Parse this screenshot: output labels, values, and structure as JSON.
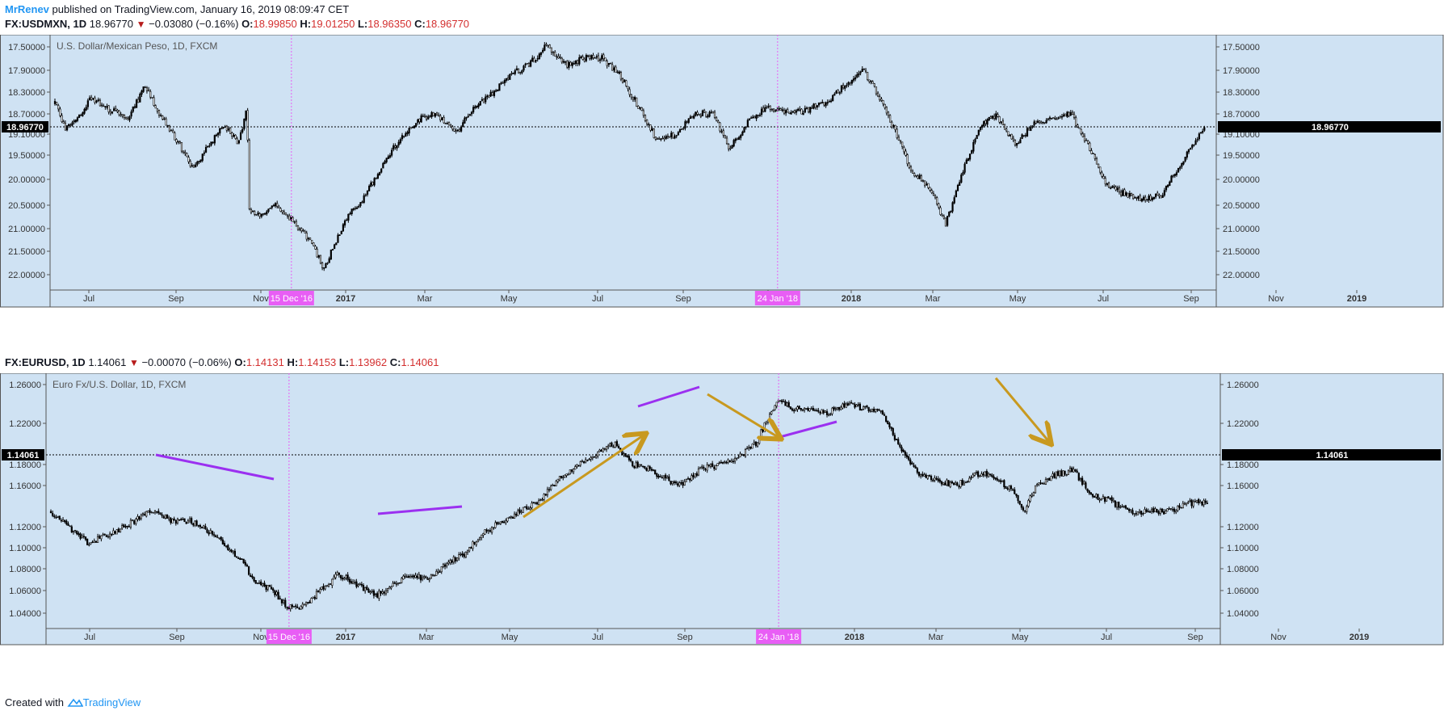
{
  "header": {
    "author": "MrRenev",
    "published_text": "published on TradingView.com, January 16, 2019 08:09:47 CET"
  },
  "ticker1": {
    "symbol": "FX:USDMXN, 1D",
    "last": "18.96770",
    "change": "−0.03080 (−0.16%)",
    "o_label": "O:",
    "o": "18.99850",
    "h_label": "H:",
    "h": "19.01250",
    "l_label": "L:",
    "l": "18.96350",
    "c_label": "C:",
    "c": "18.96770"
  },
  "ticker2": {
    "symbol": "FX:EURUSD, 1D",
    "last": "1.14061",
    "change": "−0.00070 (−0.06%)",
    "o_label": "O:",
    "o": "1.14131",
    "h_label": "H:",
    "h": "1.14153",
    "l_label": "L:",
    "l": "1.13962",
    "c_label": "C:",
    "c": "1.14061"
  },
  "footer": {
    "created_with": "Created with",
    "brand": "TradingView"
  },
  "colors": {
    "panel_bg": "#cfe2f3",
    "candles": "#000000",
    "marker": "#e85ef5",
    "trend_purple": "#9b30f0",
    "arrow_gold": "#c8991f",
    "price_label_bg": "#000000"
  },
  "chart_data": [
    {
      "type": "candlestick",
      "title": "U.S. Dollar/Mexican Peso, 1D, FXCM",
      "inverted_scale": true,
      "ylim": [
        17.35,
        22.3
      ],
      "x_ticks": [
        "Jul",
        "Sep",
        "Nov",
        "2017",
        "Mar",
        "May",
        "Jul",
        "Sep",
        "Nov",
        "2018",
        "Mar",
        "May",
        "Jul",
        "Sep",
        "Nov",
        "2019"
      ],
      "y_ticks": [
        "17.50000",
        "17.90000",
        "18.30000",
        "18.70000",
        "19.10000",
        "19.50000",
        "20.00000",
        "20.50000",
        "21.00000",
        "21.50000",
        "22.00000"
      ],
      "last_price": 18.9677,
      "last_price_label": "18.96770",
      "markers": [
        {
          "date": "2016-12-15",
          "label": "15 Dec '16"
        },
        {
          "date": "2018-01-24",
          "label": "24 Jan '18"
        }
      ],
      "x": [
        "2016-06-01",
        "2016-06-10",
        "2016-06-20",
        "2016-07-01",
        "2016-07-15",
        "2016-08-01",
        "2016-08-15",
        "2016-08-25",
        "2016-09-10",
        "2016-09-25",
        "2016-10-05",
        "2016-10-20",
        "2016-11-01",
        "2016-11-08",
        "2016-11-10",
        "2016-11-20",
        "2016-12-01",
        "2016-12-15",
        "2017-01-01",
        "2017-01-11",
        "2017-01-19",
        "2017-02-01",
        "2017-02-15",
        "2017-03-01",
        "2017-03-15",
        "2017-04-01",
        "2017-04-15",
        "2017-05-01",
        "2017-05-15",
        "2017-06-01",
        "2017-06-15",
        "2017-07-01",
        "2017-07-15",
        "2017-08-01",
        "2017-08-15",
        "2017-09-01",
        "2017-09-15",
        "2017-10-01",
        "2017-10-15",
        "2017-11-01",
        "2017-11-15",
        "2017-12-01",
        "2017-12-15",
        "2018-01-01",
        "2018-01-15",
        "2018-01-24",
        "2018-02-05",
        "2018-02-20",
        "2018-03-05",
        "2018-03-20",
        "2018-04-05",
        "2018-04-17",
        "2018-05-01",
        "2018-05-15",
        "2018-06-01",
        "2018-06-13",
        "2018-06-25",
        "2018-07-10",
        "2018-07-25",
        "2018-08-10",
        "2018-08-25",
        "2018-09-10",
        "2018-09-25",
        "2018-10-10",
        "2018-10-25",
        "2018-11-10",
        "2018-11-25",
        "2018-12-10",
        "2018-12-25",
        "2019-01-05",
        "2019-01-15"
      ],
      "values": [
        18.5,
        19.0,
        18.8,
        18.4,
        18.6,
        18.8,
        18.2,
        18.6,
        19.2,
        19.8,
        19.4,
        18.9,
        19.3,
        18.6,
        20.6,
        20.7,
        20.5,
        20.8,
        21.3,
        21.9,
        21.4,
        20.7,
        20.3,
        19.7,
        19.2,
        18.8,
        18.7,
        19.1,
        18.6,
        18.3,
        18.0,
        17.8,
        17.5,
        17.8,
        17.7,
        17.7,
        18.0,
        18.6,
        19.2,
        19.1,
        18.7,
        18.7,
        19.4,
        18.8,
        18.6,
        18.6,
        18.7,
        18.6,
        18.5,
        18.2,
        17.9,
        18.3,
        19.0,
        19.8,
        20.2,
        20.9,
        20.0,
        19.0,
        18.7,
        19.3,
        18.9,
        18.8,
        18.7,
        19.3,
        20.1,
        20.3,
        20.4,
        20.3,
        19.7,
        19.3,
        18.97
      ]
    },
    {
      "type": "candlestick",
      "title": "Euro Fx/U.S. Dollar, 1D, FXCM",
      "ylim": [
        1.023,
        1.267
      ],
      "x_ticks": [
        "Jul",
        "Sep",
        "Nov",
        "2017",
        "Mar",
        "May",
        "Jul",
        "Sep",
        "Nov",
        "2018",
        "Mar",
        "May",
        "Jul",
        "Sep",
        "Nov",
        "2019"
      ],
      "y_ticks": [
        "1.26000",
        "1.22000",
        "1.18000",
        "1.16000",
        "1.12000",
        "1.10000",
        "1.08000",
        "1.06000",
        "1.04000"
      ],
      "last_price": 1.14061,
      "last_price_label": "1.14061",
      "markers": [
        {
          "date": "2016-12-15",
          "label": "15 Dec '16"
        },
        {
          "date": "2018-01-24",
          "label": "24 Jan '18"
        }
      ],
      "x": [
        "2016-06-01",
        "2016-06-10",
        "2016-06-20",
        "2016-07-01",
        "2016-07-15",
        "2016-08-01",
        "2016-08-15",
        "2016-08-25",
        "2016-09-10",
        "2016-09-25",
        "2016-10-10",
        "2016-10-25",
        "2016-11-05",
        "2016-11-15",
        "2016-12-01",
        "2016-12-15",
        "2016-12-25",
        "2017-01-10",
        "2017-01-25",
        "2017-02-10",
        "2017-02-25",
        "2017-03-10",
        "2017-03-25",
        "2017-04-10",
        "2017-04-25",
        "2017-05-10",
        "2017-05-25",
        "2017-06-10",
        "2017-06-25",
        "2017-07-10",
        "2017-07-25",
        "2017-08-10",
        "2017-08-25",
        "2017-09-10",
        "2017-09-25",
        "2017-10-10",
        "2017-10-25",
        "2017-11-05",
        "2017-11-20",
        "2017-12-05",
        "2017-12-20",
        "2018-01-05",
        "2018-01-15",
        "2018-01-24",
        "2018-02-05",
        "2018-02-20",
        "2018-03-05",
        "2018-03-20",
        "2018-04-05",
        "2018-04-20",
        "2018-05-05",
        "2018-05-20",
        "2018-06-05",
        "2018-06-20",
        "2018-07-05",
        "2018-07-20",
        "2018-08-05",
        "2018-08-15",
        "2018-08-25",
        "2018-09-10",
        "2018-09-25",
        "2018-10-10",
        "2018-10-25",
        "2018-11-10",
        "2018-11-25",
        "2018-12-10",
        "2018-12-25",
        "2019-01-05",
        "2019-01-15"
      ],
      "values": [
        1.135,
        1.125,
        1.115,
        1.105,
        1.11,
        1.12,
        1.13,
        1.135,
        1.125,
        1.125,
        1.115,
        1.1,
        1.09,
        1.07,
        1.06,
        1.045,
        1.045,
        1.06,
        1.075,
        1.065,
        1.055,
        1.065,
        1.075,
        1.07,
        1.085,
        1.095,
        1.115,
        1.125,
        1.135,
        1.145,
        1.165,
        1.18,
        1.19,
        1.2,
        1.18,
        1.175,
        1.165,
        1.16,
        1.175,
        1.18,
        1.185,
        1.2,
        1.225,
        1.245,
        1.235,
        1.235,
        1.23,
        1.24,
        1.235,
        1.23,
        1.195,
        1.17,
        1.165,
        1.16,
        1.17,
        1.17,
        1.155,
        1.135,
        1.16,
        1.17,
        1.175,
        1.15,
        1.145,
        1.135,
        1.135,
        1.135,
        1.14,
        1.145,
        1.141
      ]
    }
  ]
}
